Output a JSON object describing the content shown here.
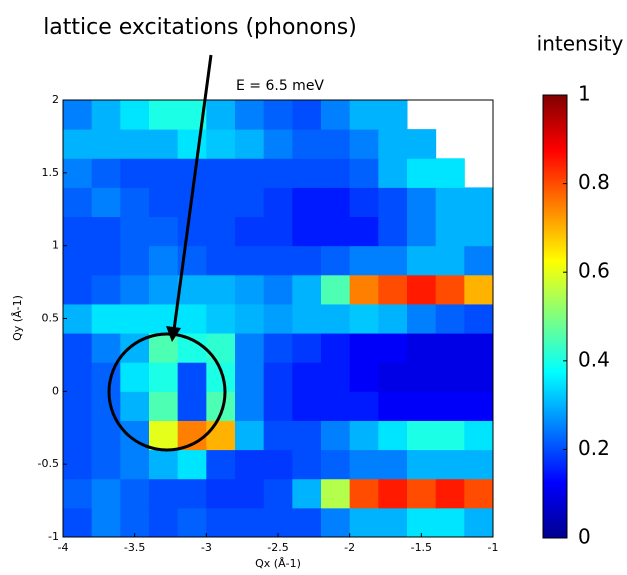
{
  "chart_data": {
    "type": "heatmap",
    "annotation": "lattice excitations (phonons)",
    "title": "E = 6.5 meV",
    "colorbar_label": "intensity",
    "xlabel": "Qx (Å-1)",
    "ylabel": "Qy (Å-1)",
    "x": [
      -3.9,
      -3.7,
      -3.5,
      -3.3,
      -3.1,
      -2.9,
      -2.7,
      -2.5,
      -2.3,
      -2.1,
      -1.9,
      -1.7,
      -1.5,
      -1.3,
      -1.1
    ],
    "y": [
      -0.9,
      -0.7,
      -0.5,
      -0.3,
      -0.1,
      0.1,
      0.3,
      0.5,
      0.7,
      0.9,
      1.1,
      1.3,
      1.5,
      1.7,
      1.9
    ],
    "z": [
      [
        0.2,
        0.25,
        0.22,
        0.2,
        0.22,
        0.2,
        0.2,
        0.2,
        0.2,
        0.25,
        0.3,
        0.3,
        0.35,
        0.35,
        0.3
      ],
      [
        0.22,
        0.25,
        0.22,
        0.2,
        0.2,
        0.18,
        0.18,
        0.2,
        0.3,
        0.55,
        0.8,
        0.85,
        0.8,
        0.85,
        0.8
      ],
      [
        0.2,
        0.22,
        0.25,
        0.3,
        0.35,
        0.2,
        0.18,
        0.18,
        0.2,
        0.22,
        0.25,
        0.25,
        0.3,
        0.3,
        0.3
      ],
      [
        0.2,
        0.22,
        0.25,
        0.6,
        0.75,
        0.7,
        0.3,
        0.2,
        0.2,
        0.25,
        0.3,
        0.35,
        0.4,
        0.4,
        0.35
      ],
      [
        0.2,
        0.22,
        0.3,
        0.45,
        0.2,
        0.45,
        0.25,
        0.18,
        0.15,
        0.15,
        0.15,
        0.12,
        0.12,
        0.12,
        0.12
      ],
      [
        0.2,
        0.22,
        0.35,
        0.4,
        0.2,
        0.4,
        0.25,
        0.18,
        0.15,
        0.15,
        0.12,
        0.1,
        0.1,
        0.1,
        0.1
      ],
      [
        0.2,
        0.25,
        0.3,
        0.45,
        0.4,
        0.42,
        0.25,
        0.2,
        0.18,
        0.15,
        0.12,
        0.12,
        0.1,
        0.1,
        0.1
      ],
      [
        0.3,
        0.35,
        0.35,
        0.35,
        0.35,
        0.32,
        0.3,
        0.28,
        0.3,
        0.3,
        0.32,
        0.3,
        0.25,
        0.22,
        0.2
      ],
      [
        0.2,
        0.22,
        0.25,
        0.28,
        0.3,
        0.3,
        0.28,
        0.25,
        0.3,
        0.45,
        0.75,
        0.8,
        0.85,
        0.8,
        0.7
      ],
      [
        0.2,
        0.2,
        0.22,
        0.25,
        0.22,
        0.2,
        0.2,
        0.2,
        0.2,
        0.22,
        0.25,
        0.25,
        0.3,
        0.3,
        0.25
      ],
      [
        0.2,
        0.2,
        0.22,
        0.22,
        0.2,
        0.2,
        0.18,
        0.18,
        0.15,
        0.15,
        0.15,
        0.2,
        0.25,
        0.3,
        0.3
      ],
      [
        0.22,
        0.25,
        0.22,
        0.2,
        0.2,
        0.2,
        0.2,
        0.18,
        0.15,
        0.15,
        0.18,
        0.2,
        0.25,
        0.3,
        0.3
      ],
      [
        0.25,
        0.22,
        0.2,
        0.2,
        0.2,
        0.2,
        0.2,
        0.2,
        0.2,
        0.2,
        0.22,
        0.3,
        0.35,
        0.35,
        null
      ],
      [
        0.3,
        0.3,
        0.3,
        0.3,
        0.35,
        0.32,
        0.3,
        0.25,
        0.22,
        0.22,
        0.25,
        0.3,
        0.3,
        null,
        null
      ],
      [
        0.25,
        0.3,
        0.35,
        0.4,
        0.4,
        0.3,
        0.25,
        0.22,
        0.2,
        0.25,
        0.3,
        0.3,
        null,
        null,
        null
      ]
    ],
    "xlim": [
      -4,
      -1
    ],
    "xticks": [
      -4,
      -3.5,
      -3,
      -2.5,
      -2,
      -1.5,
      -1
    ],
    "ylim": [
      -1,
      2
    ],
    "yticks": [
      -1,
      -0.5,
      0,
      0.5,
      1,
      1.5,
      2
    ],
    "clim": [
      0,
      1
    ],
    "cticks": [
      0,
      0.2,
      0.4,
      0.6,
      0.8,
      1
    ],
    "colormap": "jet"
  }
}
